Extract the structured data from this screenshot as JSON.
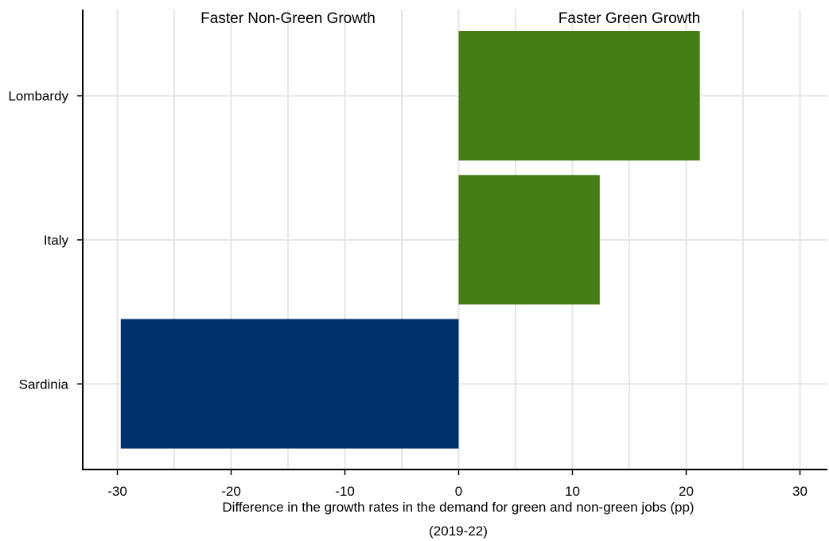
{
  "chart_data": {
    "type": "bar",
    "orientation": "horizontal",
    "categories": [
      "Lombardy",
      "Italy",
      "Sardinia"
    ],
    "values": [
      21.2,
      12.4,
      -29.7
    ],
    "title": "",
    "xlabel": "Difference in the growth rates in the demand for green and non-green jobs (pp)",
    "xlabel_line2": "(2019-22)",
    "ylabel": "",
    "xlim": [
      -33,
      33
    ],
    "xticks": [
      -30,
      -20,
      -10,
      0,
      10,
      20,
      30
    ],
    "xtick_labels": [
      "-30",
      "-20",
      "-10",
      "0",
      "10",
      "20",
      "30"
    ],
    "grid": true,
    "legend": "none",
    "annotations": {
      "left": "Faster Non-Green Growth",
      "right": "Faster Green Growth"
    },
    "colors": {
      "positive": "#437f16",
      "negative": "#00316a",
      "grid": "#e6e6e6",
      "axis": "#000000"
    }
  }
}
